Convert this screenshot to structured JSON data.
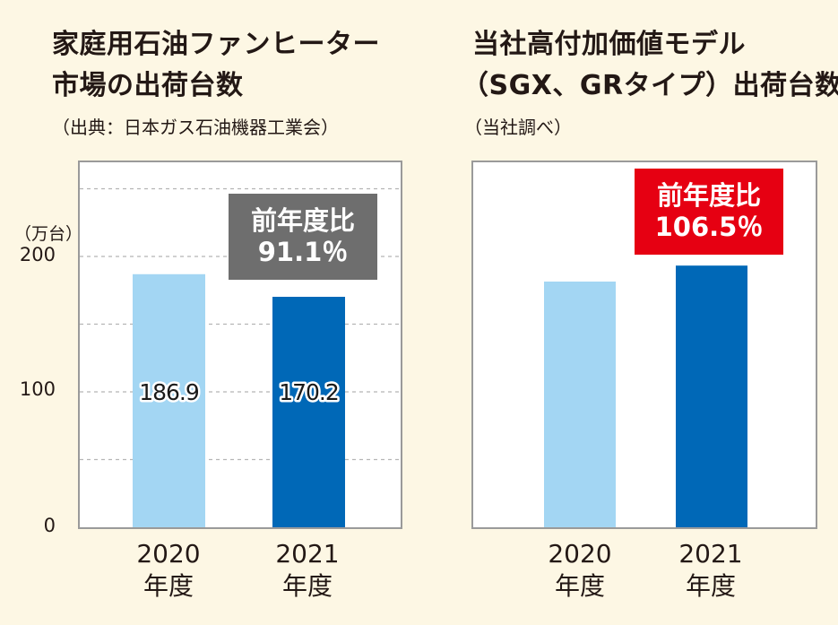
{
  "chart_data": [
    {
      "type": "bar",
      "title_line1": "家庭用石油ファンヒーター",
      "title_line2": "市場の出荷台数",
      "source": "（出典：日本ガス石油機器工業会）",
      "ylabel": "（万台）",
      "yticks": [
        "200",
        "100",
        "0"
      ],
      "ylim": [
        0,
        265
      ],
      "grid": true,
      "categories": [
        [
          "2020",
          "年度"
        ],
        [
          "2021",
          "年度"
        ]
      ],
      "values": [
        186.9,
        170.2
      ],
      "value_labels": [
        "186.9",
        "170.2"
      ],
      "bar_colors": [
        "#a3d6f3",
        "#0068b7"
      ],
      "badge": {
        "line1": "前年度比",
        "line2": "91.1％",
        "color": "#6e6e6e"
      }
    },
    {
      "type": "bar",
      "title_line1": "当社高付加価値モデル",
      "title_line2": "（SGX、GRタイプ）出荷台数",
      "source": "（当社調べ）",
      "categories": [
        [
          "2020",
          "年度"
        ],
        [
          "2021",
          "年度"
        ]
      ],
      "values": [
        100,
        106.5
      ],
      "bar_colors": [
        "#a3d6f3",
        "#0068b7"
      ],
      "badge": {
        "line1": "前年度比",
        "line2": "106.5％",
        "color": "#e60012"
      }
    }
  ]
}
